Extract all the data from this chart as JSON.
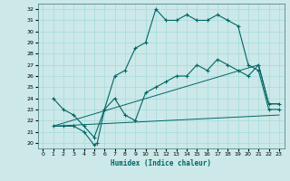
{
  "xlabel": "Humidex (Indice chaleur)",
  "xlim": [
    -0.5,
    23.5
  ],
  "ylim": [
    19.5,
    32.5
  ],
  "xticks": [
    0,
    1,
    2,
    3,
    4,
    5,
    6,
    7,
    8,
    9,
    10,
    11,
    12,
    13,
    14,
    15,
    16,
    17,
    18,
    19,
    20,
    21,
    22,
    23
  ],
  "yticks": [
    20,
    21,
    22,
    23,
    24,
    25,
    26,
    27,
    28,
    29,
    30,
    31,
    32
  ],
  "bg_color": "#cce8e8",
  "grid_color": "#aadddd",
  "line_color": "#006666",
  "lines": [
    {
      "x": [
        1,
        2,
        3,
        4,
        5,
        6,
        7,
        8,
        9,
        10,
        11,
        12,
        13,
        14,
        15,
        16,
        17,
        18,
        19,
        20,
        21,
        22,
        23
      ],
      "y": [
        24,
        23,
        22.5,
        21.5,
        20.5,
        23,
        26,
        26.5,
        28.5,
        29,
        32,
        31,
        31,
        31.5,
        31,
        31,
        31.5,
        31,
        30.5,
        27,
        26.5,
        23,
        23
      ],
      "markers": true
    },
    {
      "x": [
        1,
        2,
        3,
        4,
        5,
        5.3,
        6,
        7,
        8,
        9,
        10,
        11,
        12,
        13,
        14,
        15,
        16,
        17,
        18,
        19,
        20,
        21,
        22,
        23
      ],
      "y": [
        21.5,
        21.5,
        21.5,
        21,
        19.8,
        20,
        23,
        24,
        22.5,
        22,
        24.5,
        25,
        25.5,
        26,
        26,
        27,
        26.5,
        27.5,
        27,
        26.5,
        26,
        27,
        23.5,
        23.5
      ],
      "markers": true
    },
    {
      "x": [
        1,
        21,
        22,
        23
      ],
      "y": [
        21.5,
        27,
        23.5,
        23.5
      ],
      "markers": false
    },
    {
      "x": [
        1,
        23
      ],
      "y": [
        21.5,
        22.5
      ],
      "markers": false
    }
  ]
}
